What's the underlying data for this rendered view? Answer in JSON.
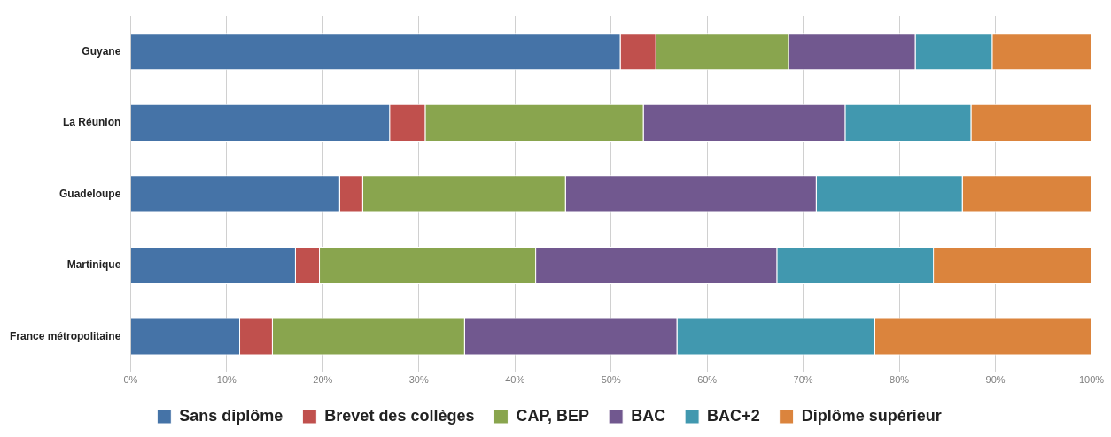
{
  "chart_data": {
    "type": "bar",
    "orientation": "horizontal",
    "stacked": true,
    "categories": [
      "Guyane",
      "La Réunion",
      "Guadeloupe",
      "Martinique",
      "France métropolitaine"
    ],
    "series": [
      {
        "name": "Sans diplôme",
        "color": "#4573a7",
        "values": [
          51,
          27,
          21.8,
          17.2,
          11.4
        ]
      },
      {
        "name": "Brevet des collèges",
        "color": "#c0504d",
        "values": [
          3.7,
          3.7,
          2.4,
          2.5,
          3.4
        ]
      },
      {
        "name": "CAP, BEP",
        "color": "#89a54e",
        "values": [
          13.8,
          22.7,
          21.1,
          22.5,
          20
        ]
      },
      {
        "name": "BAC",
        "color": "#71588f",
        "values": [
          13.2,
          21,
          26.1,
          25.1,
          22.1
        ]
      },
      {
        "name": "BAC+2",
        "color": "#4198af",
        "values": [
          8,
          13.1,
          15.2,
          16.3,
          20.6
        ]
      },
      {
        "name": "Diplôme supérieur",
        "color": "#db843d",
        "values": [
          10.3,
          12.5,
          13.4,
          16.4,
          22.5
        ]
      }
    ],
    "xlim": [
      0,
      100
    ],
    "xticks": [
      {
        "value": 0,
        "label": "0%"
      },
      {
        "value": 10,
        "label": "10%"
      },
      {
        "value": 20,
        "label": "20%"
      },
      {
        "value": 30,
        "label": "30%"
      },
      {
        "value": 40,
        "label": "40%"
      },
      {
        "value": 50,
        "label": "50%"
      },
      {
        "value": 60,
        "label": "60%"
      },
      {
        "value": 70,
        "label": "70%"
      },
      {
        "value": 80,
        "label": "80%"
      },
      {
        "value": 90,
        "label": "90%"
      },
      {
        "value": 100,
        "label": "100%"
      }
    ],
    "grid": "x",
    "legend": "bottom"
  }
}
